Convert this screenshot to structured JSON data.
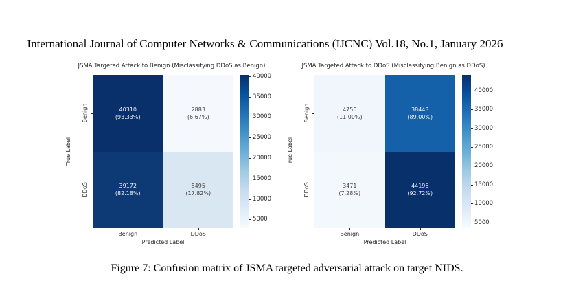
{
  "header": {
    "text": "International Journal of Computer Networks & Communications (IJCNC) Vol.18, No.1, January 2026"
  },
  "caption": {
    "text": "Figure 7: Confusion matrix of JSMA targeted adversarial attack on target NIDS."
  },
  "chart_data": [
    {
      "type": "heatmap",
      "title": "JSMA Targeted Attack to Benign (Misclassifying DDoS as Benign)",
      "xlabel": "Predicted Label",
      "ylabel": "True Label",
      "x_categories": [
        "Benign",
        "DDoS"
      ],
      "y_categories": [
        "Benign",
        "DDoS"
      ],
      "colormap": "Blues",
      "cells": [
        [
          {
            "count": "40310",
            "percent": "(93.33%)",
            "bg": "#0a306b",
            "fg": "#f0f0f0"
          },
          {
            "count": "2883",
            "percent": "(6.67%)",
            "bg": "#f5f9fe",
            "fg": "#404040"
          }
        ],
        [
          {
            "count": "39172",
            "percent": "(82.18%)",
            "bg": "#0d3a75",
            "fg": "#f0f0f0"
          },
          {
            "count": "8495",
            "percent": "(17.82%)",
            "bg": "#d9e7f3",
            "fg": "#404040"
          }
        ]
      ],
      "colorbar": {
        "vmin": 2883,
        "vmax": 40310,
        "ticks": [
          5000,
          10000,
          15000,
          20000,
          25000,
          30000,
          35000,
          40000
        ]
      }
    },
    {
      "type": "heatmap",
      "title": "JSMA Targeted Attack to DDoS (Misclassifying Benign as DDoS)",
      "xlabel": "Predicted Label",
      "ylabel": "True Label",
      "x_categories": [
        "Benign",
        "DDoS"
      ],
      "y_categories": [
        "Benign",
        "DDoS"
      ],
      "colormap": "Blues",
      "cells": [
        [
          {
            "count": "4750",
            "percent": "(11.00%)",
            "bg": "#f0f6fc",
            "fg": "#404040"
          },
          {
            "count": "38443",
            "percent": "(89.00%)",
            "bg": "#1561a9",
            "fg": "#f0f0f0"
          }
        ],
        [
          {
            "count": "3471",
            "percent": "(7.28%)",
            "bg": "#f3f8fd",
            "fg": "#404040"
          },
          {
            "count": "44196",
            "percent": "(92.72%)",
            "bg": "#08306b",
            "fg": "#f0f0f0"
          }
        ]
      ],
      "colorbar": {
        "vmin": 3471,
        "vmax": 44196,
        "ticks": [
          5000,
          10000,
          15000,
          20000,
          25000,
          30000,
          35000,
          40000
        ]
      }
    }
  ]
}
